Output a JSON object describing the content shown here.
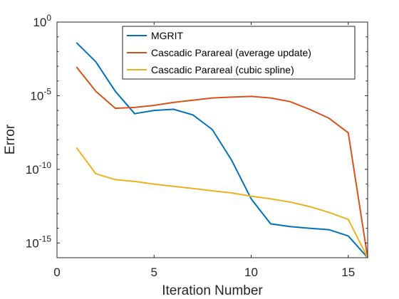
{
  "chart_data": {
    "type": "line",
    "title": "",
    "xlabel": "Iteration Number",
    "ylabel": "Error",
    "xlim": [
      0,
      16
    ],
    "ylim": [
      1e-16,
      1
    ],
    "yscale": "log",
    "grid": false,
    "legend_position": "top-right",
    "x_ticks": [
      {
        "value": 0,
        "label": "0"
      },
      {
        "value": 5,
        "label": "5"
      },
      {
        "value": 10,
        "label": "10"
      },
      {
        "value": 15,
        "label": "15"
      }
    ],
    "y_ticks": [
      {
        "value": 1,
        "base": "10",
        "exp": "0"
      },
      {
        "value": 1e-05,
        "base": "10",
        "exp": "-5"
      },
      {
        "value": 1e-10,
        "base": "10",
        "exp": "-10"
      },
      {
        "value": 1e-15,
        "base": "10",
        "exp": "-15"
      }
    ],
    "x": [
      1,
      2,
      3,
      4,
      5,
      6,
      7,
      8,
      9,
      10,
      11,
      12,
      13,
      14,
      15,
      16
    ],
    "series": [
      {
        "name": "MGRIT",
        "color": "#0072BD",
        "values": [
          0.04,
          0.002,
          2e-05,
          6e-07,
          1e-06,
          1.2e-06,
          5e-07,
          5e-08,
          4e-10,
          1e-12,
          2e-14,
          1.3e-14,
          1e-14,
          8e-15,
          3e-15,
          1e-16
        ]
      },
      {
        "name": "Cascadic Parareal (average update)",
        "color": "#D95319",
        "values": [
          0.0009,
          2e-05,
          1.4e-06,
          1.6e-06,
          2.2e-06,
          3.5e-06,
          5e-06,
          7e-06,
          8e-06,
          9e-06,
          7e-06,
          4e-06,
          1.2e-06,
          3e-07,
          3e-08,
          1e-16
        ]
      },
      {
        "name": "Cascadic Parareal (cubic spline)",
        "color": "#EDB120",
        "values": [
          3e-09,
          5e-11,
          2e-11,
          1.5e-11,
          1e-11,
          7e-12,
          5e-12,
          3.5e-12,
          2.5e-12,
          1.5e-12,
          1e-12,
          6e-13,
          3e-13,
          1.2e-13,
          4e-14,
          1e-16
        ]
      }
    ]
  }
}
